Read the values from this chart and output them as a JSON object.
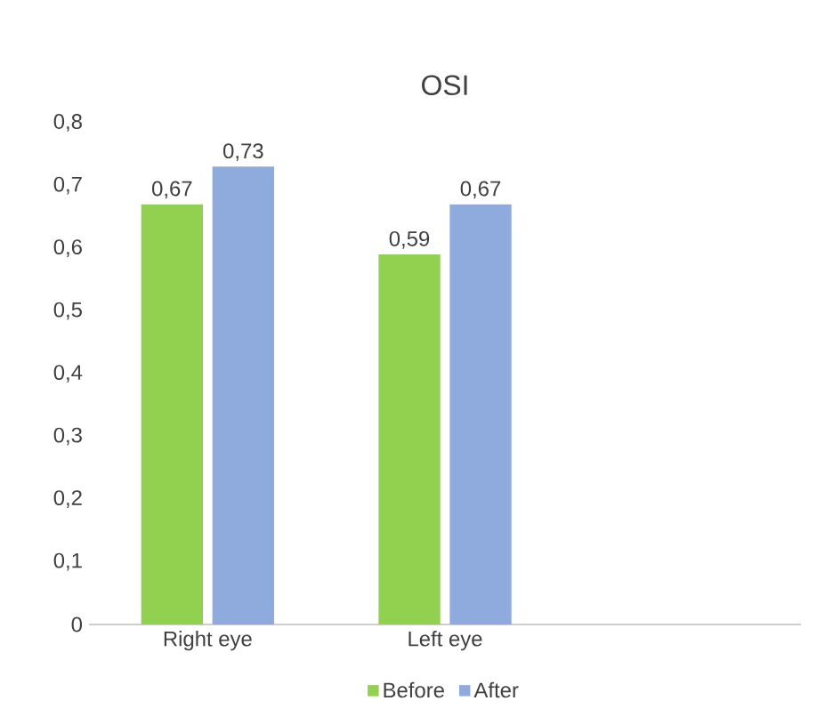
{
  "chart_data": {
    "type": "bar",
    "title": "OSI",
    "categories": [
      "Right eye",
      "Left eye",
      null
    ],
    "series": [
      {
        "name": "Before",
        "color": "#92d050",
        "values": [
          0.67,
          0.59,
          null
        ],
        "value_labels": [
          "0,67",
          "0,59",
          null
        ]
      },
      {
        "name": "After",
        "color": "#8faadc",
        "values": [
          0.73,
          0.67,
          null
        ],
        "value_labels": [
          "0,73",
          "0,67",
          null
        ]
      }
    ],
    "ylim": [
      0,
      0.8
    ],
    "yticks": [
      {
        "value": 0,
        "label": "0"
      },
      {
        "value": 0.1,
        "label": "0,1"
      },
      {
        "value": 0.2,
        "label": "0,2"
      },
      {
        "value": 0.3,
        "label": "0,3"
      },
      {
        "value": 0.4,
        "label": "0,4"
      },
      {
        "value": 0.5,
        "label": "0,5"
      },
      {
        "value": 0.6,
        "label": "0,6"
      },
      {
        "value": 0.7,
        "label": "0,7"
      },
      {
        "value": 0.8,
        "label": "0,8"
      }
    ],
    "grid": false,
    "legend": "bottom"
  }
}
